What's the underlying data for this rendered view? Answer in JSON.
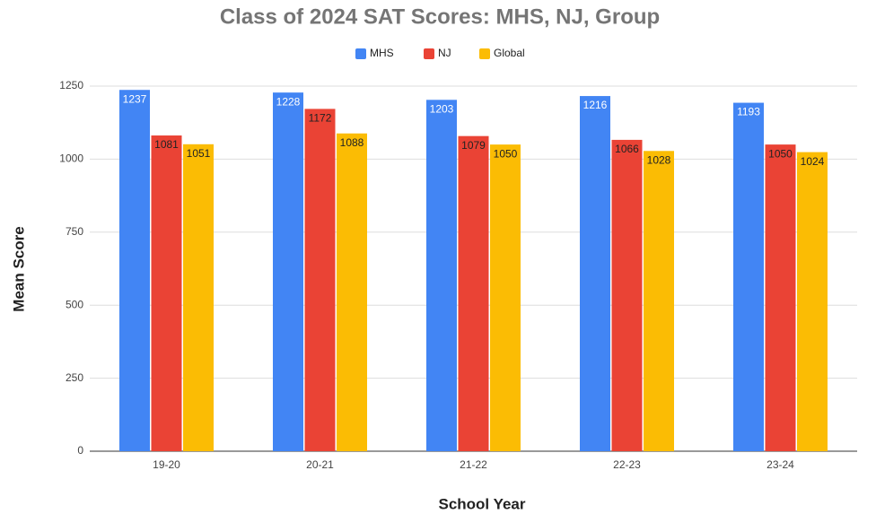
{
  "chart_data": {
    "type": "bar",
    "title": "Class of 2024 SAT Scores:  MHS, NJ, Group",
    "x_label": "School Year",
    "y_label": "Mean Score",
    "categories": [
      "19-20",
      "20-21",
      "21-22",
      "22-23",
      "23-24"
    ],
    "series": [
      {
        "name": "MHS",
        "color": "#4285f4",
        "values": [
          1237,
          1228,
          1203,
          1216,
          1193
        ]
      },
      {
        "name": "NJ",
        "color": "#ea4335",
        "values": [
          1081,
          1172,
          1079,
          1066,
          1050
        ]
      },
      {
        "name": "Global",
        "color": "#fbbc04",
        "values": [
          1051,
          1088,
          1050,
          1028,
          1024
        ]
      }
    ],
    "ylim": [
      0,
      1250
    ],
    "yticks": [
      0,
      250,
      500,
      750,
      1000,
      1250
    ],
    "grid": true,
    "legend": "top"
  }
}
